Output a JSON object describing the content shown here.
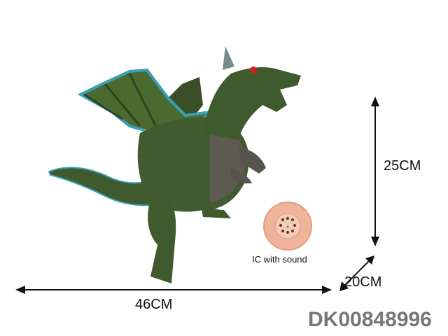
{
  "product": {
    "dimensions": {
      "height": "25CM",
      "depth": "20CM",
      "length": "46CM"
    },
    "feature_label": "IC with sound",
    "item_code": "DK00848996"
  },
  "colors": {
    "dragon_body": "#3f5a2c",
    "wing_edge": "#3aa0b8",
    "speaker": "#f0b49a",
    "code_text": "#777777"
  }
}
